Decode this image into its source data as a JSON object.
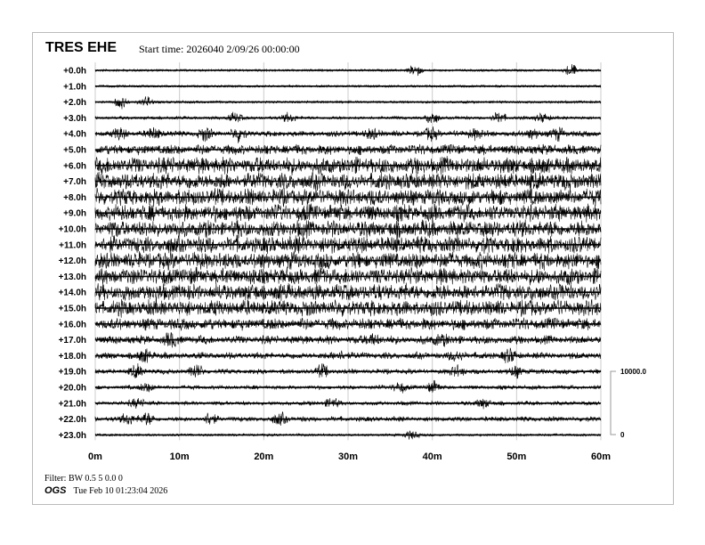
{
  "header": {
    "station": "TRES EHE",
    "start_time": "Start time: 2026040  2/09/26 00:00:00"
  },
  "footer": {
    "filter": "Filter: BW 0.5 5 0.0 0",
    "org": "OGS",
    "generated": "Tue Feb 10 01:23:04 2026"
  },
  "chart_data": {
    "type": "line",
    "title": "TRES EHE",
    "x_ticks": [
      "0m",
      "10m",
      "20m",
      "30m",
      "40m",
      "50m",
      "60m"
    ],
    "xlim": [
      0,
      60
    ],
    "grid": true,
    "scale": {
      "top_label": "10000.0",
      "bottom_label": "0"
    },
    "rows": [
      {
        "label": "+0.0h",
        "amplitude": 0.12,
        "events": [
          38,
          56.5
        ]
      },
      {
        "label": "+1.0h",
        "amplitude": 0.08,
        "events": []
      },
      {
        "label": "+2.0h",
        "amplitude": 0.15,
        "events": [
          3,
          6
        ]
      },
      {
        "label": "+3.0h",
        "amplitude": 0.2,
        "events": [
          16.5,
          23,
          40,
          48,
          53
        ]
      },
      {
        "label": "+4.0h",
        "amplitude": 0.35,
        "events": [
          3,
          7,
          13,
          17,
          33,
          40,
          45,
          52,
          55
        ]
      },
      {
        "label": "+5.0h",
        "amplitude": 0.6,
        "events": []
      },
      {
        "label": "+6.0h",
        "amplitude": 1.0,
        "events": []
      },
      {
        "label": "+7.0h",
        "amplitude": 1.0,
        "events": []
      },
      {
        "label": "+8.0h",
        "amplitude": 1.0,
        "events": []
      },
      {
        "label": "+9.0h",
        "amplitude": 1.0,
        "events": []
      },
      {
        "label": "+10.0h",
        "amplitude": 1.0,
        "events": []
      },
      {
        "label": "+11.0h",
        "amplitude": 1.0,
        "events": []
      },
      {
        "label": "+12.0h",
        "amplitude": 1.0,
        "events": []
      },
      {
        "label": "+13.0h",
        "amplitude": 1.0,
        "events": []
      },
      {
        "label": "+14.0h",
        "amplitude": 1.0,
        "events": []
      },
      {
        "label": "+15.0h",
        "amplitude": 0.95,
        "events": []
      },
      {
        "label": "+16.0h",
        "amplitude": 0.7,
        "events": []
      },
      {
        "label": "+17.0h",
        "amplitude": 0.5,
        "events": [
          9,
          33,
          41
        ]
      },
      {
        "label": "+18.0h",
        "amplitude": 0.4,
        "events": [
          6,
          29,
          43,
          49
        ]
      },
      {
        "label": "+19.0h",
        "amplitude": 0.3,
        "events": [
          5,
          12,
          27,
          43,
          50
        ]
      },
      {
        "label": "+20.0h",
        "amplitude": 0.25,
        "events": [
          6,
          36,
          40
        ]
      },
      {
        "label": "+21.0h",
        "amplitude": 0.25,
        "events": [
          5,
          28,
          46
        ]
      },
      {
        "label": "+22.0h",
        "amplitude": 0.3,
        "events": [
          4,
          6,
          13.5,
          22
        ]
      },
      {
        "label": "+23.0h",
        "amplitude": 0.15,
        "events": [
          37.5
        ]
      }
    ]
  }
}
